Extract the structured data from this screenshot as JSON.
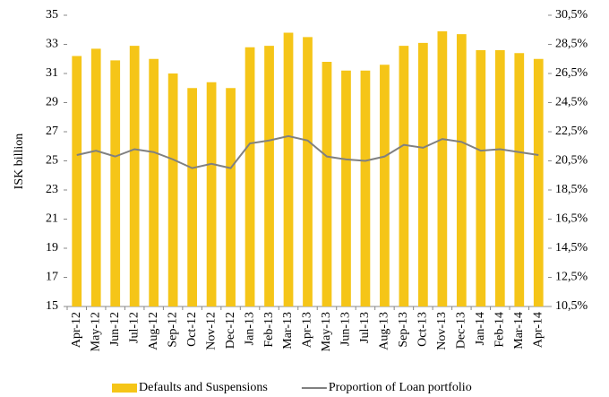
{
  "chart_data": {
    "type": "bar-line",
    "y_label": "ISK billion",
    "categories": [
      "Apr-12",
      "May-12",
      "Jun-12",
      "Jul-12",
      "Aug-12",
      "Sep-12",
      "Oct-12",
      "Nov-12",
      "Dec-12",
      "Jan-13",
      "Feb-13",
      "Mar-13",
      "Apr-13",
      "May-13",
      "Jun-13",
      "Jul-13",
      "Aug-13",
      "Sep-13",
      "Oct-13",
      "Nov-13",
      "Dec-13",
      "Jan-14",
      "Feb-14",
      "Mar-14",
      "Apr-14"
    ],
    "series": [
      {
        "name": "Defaults and Suspensions",
        "type": "bar",
        "color": "#f5c518",
        "axis": "y",
        "values": [
          32.2,
          32.7,
          31.9,
          32.9,
          32.0,
          31.0,
          30.0,
          30.4,
          30.0,
          32.8,
          32.9,
          33.8,
          33.5,
          31.8,
          31.2,
          31.2,
          31.6,
          32.9,
          33.1,
          33.9,
          33.7,
          32.6,
          32.6,
          32.4,
          32.0
        ]
      },
      {
        "name": "Proportion of Loan portfolio",
        "type": "line",
        "color": "#808080",
        "axis": "y2",
        "values": [
          20.9,
          21.2,
          20.8,
          21.3,
          21.1,
          20.6,
          20.0,
          20.3,
          20.0,
          21.7,
          21.9,
          22.2,
          21.9,
          20.8,
          20.6,
          20.5,
          20.8,
          21.6,
          21.4,
          22.0,
          21.8,
          21.2,
          21.3,
          21.1,
          20.9
        ]
      }
    ],
    "ylim": [
      15,
      35
    ],
    "yticks": [
      15,
      17,
      19,
      21,
      23,
      25,
      27,
      29,
      31,
      33,
      35
    ],
    "y2lim": [
      10.5,
      30.5
    ],
    "y2ticks": [
      {
        "value": 10.5,
        "label": "10,5%"
      },
      {
        "value": 12.5,
        "label": "12,5%"
      },
      {
        "value": 14.5,
        "label": "14,5%"
      },
      {
        "value": 16.5,
        "label": "16,5%"
      },
      {
        "value": 18.5,
        "label": "18,5%"
      },
      {
        "value": 20.5,
        "label": "20,5%"
      },
      {
        "value": 22.5,
        "label": "22,5%"
      },
      {
        "value": 24.5,
        "label": "24,5%"
      },
      {
        "value": 26.5,
        "label": "26,5%"
      },
      {
        "value": 28.5,
        "label": "28,5%"
      },
      {
        "value": 30.5,
        "label": "30,5%"
      }
    ],
    "grid": false,
    "legend": "bottom"
  }
}
